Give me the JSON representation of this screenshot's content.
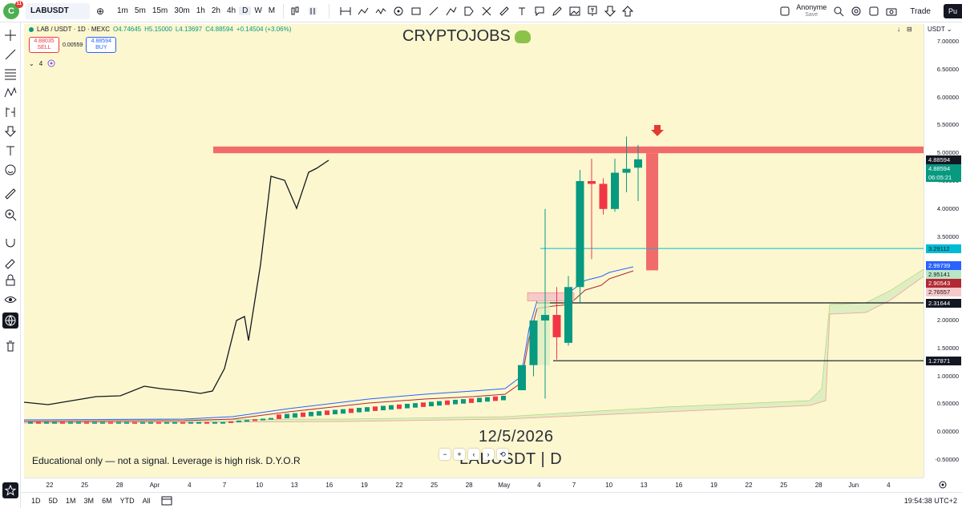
{
  "topbar": {
    "logo_badge": "11",
    "symbol": "LABUSDT",
    "intervals": [
      "1m",
      "5m",
      "15m",
      "30m",
      "1h",
      "2h",
      "4h",
      "D",
      "W",
      "M"
    ],
    "active_interval": "D",
    "user_name": "Anonyme",
    "user_status": "Save",
    "trade_label": "Trade",
    "publish_label": "Pu"
  },
  "legend": {
    "title": "LAB / USDT · 1D · MEXC",
    "open": "O4.74645",
    "high": "H5.15000",
    "low": "L4.13697",
    "close": "C4.88594",
    "change": "+0.14504 (+3.06%)",
    "sell_price": "4.88035",
    "sell_label": "SELL",
    "spread": "0.00559",
    "buy_price": "4.88594",
    "buy_label": "BUY",
    "indicator_count": "4"
  },
  "watermark": {
    "brand": "CRYPTOJOBS",
    "date": "12/5/2026",
    "symbol_interval": "LABUSDT | D"
  },
  "disclaimer": "Educational only — not a signal. Leverage is high risk. D.Y.O.R",
  "price_scale": {
    "currency": "USDT",
    "ticks": [
      "7.00000",
      "6.50000",
      "6.00000",
      "5.50000",
      "5.00000",
      "4.50000",
      "4.00000",
      "3.50000",
      "3.00000",
      "2.50000",
      "2.00000",
      "1.50000",
      "1.00000",
      "0.50000",
      "0.00000",
      "-0.50000"
    ],
    "labels": [
      {
        "text": "4.88594",
        "color": "#131722",
        "fg": "#ffffff"
      },
      {
        "text": "4.88594",
        "color": "#089981",
        "fg": "#ffffff"
      },
      {
        "text": "06:05:21",
        "color": "#089981",
        "fg": "#ffffff"
      },
      {
        "text": "3.29112",
        "color": "#00bcd4",
        "fg": "#131722"
      },
      {
        "text": "2.99739",
        "color": "#2962ff",
        "fg": "#ffffff"
      },
      {
        "text": "2.95141",
        "color": "#b9e6c3",
        "fg": "#131722"
      },
      {
        "text": "2.90543",
        "color": "#b22833",
        "fg": "#ffffff"
      },
      {
        "text": "2.76557",
        "color": "#f7c9c9",
        "fg": "#131722"
      },
      {
        "text": "2.31644",
        "color": "#131722",
        "fg": "#ffffff"
      },
      {
        "text": "1.27871",
        "color": "#131722",
        "fg": "#ffffff"
      }
    ]
  },
  "time_scale": [
    "22",
    "25",
    "28",
    "Apr",
    "4",
    "7",
    "10",
    "13",
    "16",
    "19",
    "22",
    "25",
    "28",
    "May",
    "4",
    "7",
    "10",
    "13",
    "16",
    "19",
    "22",
    "25",
    "28",
    "Jun",
    "4"
  ],
  "bottom_ranges": [
    "1D",
    "5D",
    "1M",
    "3M",
    "6M",
    "YTD",
    "All"
  ],
  "clock": "19:54:38 UTC+2",
  "colors": {
    "chart_bg": "#fcf7cf",
    "up": "#089981",
    "down": "#f23645",
    "resistance": "#f26b6b",
    "cyan_line": "#00bcd4"
  },
  "chart_data": {
    "type": "candlestick",
    "ylim": [
      -0.5,
      7.0
    ],
    "resistance_zone": [
      5.0,
      5.12
    ],
    "horizontal_lines": [
      {
        "value": 3.29112,
        "color": "#00bcd4"
      },
      {
        "value": 2.31644,
        "color": "#131722"
      },
      {
        "value": 1.27871,
        "color": "#131722"
      }
    ],
    "recent_candles": [
      {
        "date": "May 1",
        "open": 0.75,
        "high": 1.2,
        "low": 0.75,
        "close": 1.2
      },
      {
        "date": "May 2",
        "open": 1.2,
        "high": 2.0,
        "low": 1.0,
        "close": 2.0
      },
      {
        "date": "May 3",
        "open": 2.0,
        "high": 4.0,
        "low": 0.6,
        "close": 2.1
      },
      {
        "date": "May 4",
        "open": 2.1,
        "high": 2.6,
        "low": 1.3,
        "close": 1.7
      },
      {
        "date": "May 5",
        "open": 1.6,
        "high": 2.8,
        "low": 1.55,
        "close": 2.6
      },
      {
        "date": "May 6",
        "open": 2.6,
        "high": 4.7,
        "low": 2.3,
        "close": 4.5
      },
      {
        "date": "May 7",
        "open": 4.5,
        "high": 4.9,
        "low": 3.1,
        "close": 4.45
      },
      {
        "date": "May 8",
        "open": 4.45,
        "high": 4.55,
        "low": 3.9,
        "close": 4.0
      },
      {
        "date": "May 9",
        "open": 4.0,
        "high": 4.9,
        "low": 3.95,
        "close": 4.65
      },
      {
        "date": "May 10",
        "open": 4.65,
        "high": 5.3,
        "low": 4.3,
        "close": 4.72
      },
      {
        "date": "May 11",
        "open": 4.74,
        "high": 5.15,
        "low": 4.14,
        "close": 4.89
      }
    ]
  }
}
